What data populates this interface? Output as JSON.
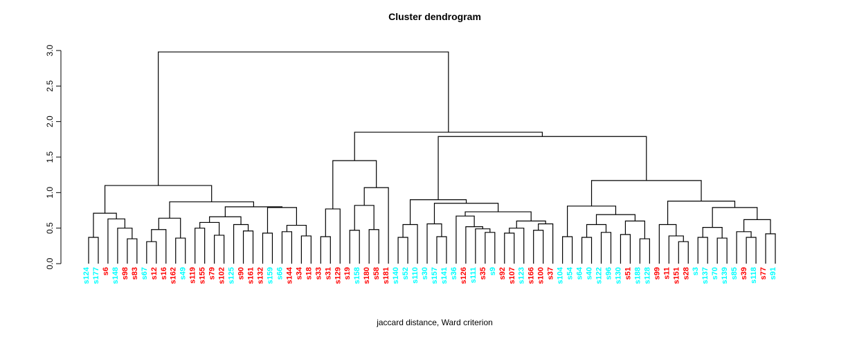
{
  "chart_data": {
    "type": "dendrogram",
    "title": "Cluster dendrogram",
    "xlabel": "jaccard distance, Ward criterion",
    "ylabel": "",
    "ylim": [
      0,
      3
    ],
    "y_tick_labels": [
      "0.0",
      "0.5",
      "1.0",
      "1.5",
      "2.0",
      "2.5",
      "3.0"
    ],
    "y_tick_values": [
      0,
      0.5,
      1,
      1.5,
      2,
      2.5,
      3
    ],
    "grid": false,
    "line_color": "#000000",
    "background_color": "#ffffff",
    "leaf_color_map": {
      "r": "#FF0000",
      "c": "#00FFFF"
    },
    "leaves": [
      {
        "label": "s124",
        "color": "c"
      },
      {
        "label": "s177",
        "color": "c"
      },
      {
        "label": "s6",
        "color": "r"
      },
      {
        "label": "s148",
        "color": "c"
      },
      {
        "label": "s98",
        "color": "r"
      },
      {
        "label": "s83",
        "color": "r"
      },
      {
        "label": "s67",
        "color": "c"
      },
      {
        "label": "s12",
        "color": "r"
      },
      {
        "label": "s16",
        "color": "r"
      },
      {
        "label": "s162",
        "color": "r"
      },
      {
        "label": "s49",
        "color": "c"
      },
      {
        "label": "s119",
        "color": "r"
      },
      {
        "label": "s155",
        "color": "r"
      },
      {
        "label": "s79",
        "color": "r"
      },
      {
        "label": "s102",
        "color": "r"
      },
      {
        "label": "s125",
        "color": "c"
      },
      {
        "label": "s90",
        "color": "r"
      },
      {
        "label": "s161",
        "color": "r"
      },
      {
        "label": "s132",
        "color": "r"
      },
      {
        "label": "s159",
        "color": "c"
      },
      {
        "label": "s66",
        "color": "c"
      },
      {
        "label": "s144",
        "color": "r"
      },
      {
        "label": "s34",
        "color": "r"
      },
      {
        "label": "s18",
        "color": "r"
      },
      {
        "label": "s33",
        "color": "r"
      },
      {
        "label": "s31",
        "color": "r"
      },
      {
        "label": "s129",
        "color": "r"
      },
      {
        "label": "s19",
        "color": "r"
      },
      {
        "label": "s158",
        "color": "c"
      },
      {
        "label": "s180",
        "color": "r"
      },
      {
        "label": "s58",
        "color": "r"
      },
      {
        "label": "s181",
        "color": "r"
      },
      {
        "label": "s140",
        "color": "c"
      },
      {
        "label": "s52",
        "color": "c"
      },
      {
        "label": "s110",
        "color": "c"
      },
      {
        "label": "s30",
        "color": "c"
      },
      {
        "label": "s157",
        "color": "c"
      },
      {
        "label": "s141",
        "color": "c"
      },
      {
        "label": "s36",
        "color": "c"
      },
      {
        "label": "s126",
        "color": "r"
      },
      {
        "label": "s111",
        "color": "c"
      },
      {
        "label": "s35",
        "color": "r"
      },
      {
        "label": "s9",
        "color": "c"
      },
      {
        "label": "s92",
        "color": "r"
      },
      {
        "label": "s107",
        "color": "r"
      },
      {
        "label": "s123",
        "color": "c"
      },
      {
        "label": "s166",
        "color": "r"
      },
      {
        "label": "s100",
        "color": "r"
      },
      {
        "label": "s37",
        "color": "r"
      },
      {
        "label": "s104",
        "color": "c"
      },
      {
        "label": "s54",
        "color": "c"
      },
      {
        "label": "s64",
        "color": "c"
      },
      {
        "label": "s40",
        "color": "c"
      },
      {
        "label": "s122",
        "color": "c"
      },
      {
        "label": "s96",
        "color": "c"
      },
      {
        "label": "s130",
        "color": "c"
      },
      {
        "label": "s51",
        "color": "r"
      },
      {
        "label": "s188",
        "color": "c"
      },
      {
        "label": "s128",
        "color": "c"
      },
      {
        "label": "s99",
        "color": "r"
      },
      {
        "label": "s11",
        "color": "r"
      },
      {
        "label": "s151",
        "color": "r"
      },
      {
        "label": "s28",
        "color": "r"
      },
      {
        "label": "s3",
        "color": "c"
      },
      {
        "label": "s137",
        "color": "c"
      },
      {
        "label": "s70",
        "color": "c"
      },
      {
        "label": "s139",
        "color": "c"
      },
      {
        "label": "s85",
        "color": "c"
      },
      {
        "label": "s39",
        "color": "r"
      },
      {
        "label": "s118",
        "color": "c"
      },
      {
        "label": "s77",
        "color": "r"
      },
      {
        "label": "s91",
        "color": "c"
      }
    ],
    "tree": [
      2.98,
      [
        1.1,
        [
          0.71,
          [
            0.37,
            0,
            1
          ],
          [
            0.63,
            2,
            [
              0.5,
              3,
              [
                0.35,
                4,
                5
              ]
            ]
          ]
        ],
        [
          0.87,
          [
            0.64,
            [
              0.48,
              [
                0.31,
                6,
                7
              ],
              8
            ],
            [
              0.36,
              9,
              10
            ]
          ],
          [
            0.8,
            [
              0.66,
              [
                0.58,
                [
                  0.5,
                  11,
                  12
                ],
                [
                  0.4,
                  13,
                  14
                ]
              ],
              [
                0.55,
                15,
                [
                  0.46,
                  16,
                  17
                ]
              ]
            ],
            [
              0.79,
              [
                0.43,
                18,
                19
              ],
              [
                0.54,
                [
                  0.45,
                  20,
                  21
                ],
                [
                  0.39,
                  22,
                  23
                ]
              ]
            ]
          ]
        ]
      ],
      [
        1.85,
        [
          1.45,
          [
            0.77,
            [
              0.38,
              24,
              25
            ],
            26
          ],
          [
            1.07,
            [
              0.82,
              [
                0.47,
                27,
                28
              ],
              [
                0.48,
                29,
                30
              ]
            ],
            31
          ]
        ],
        [
          1.79,
          [
            0.9,
            [
              0.55,
              [
                0.37,
                32,
                33
              ],
              34
            ],
            [
              0.85,
              [
                0.56,
                35,
                [
                  0.38,
                  36,
                  37
                ]
              ],
              [
                0.73,
                [
                  0.67,
                  38,
                  [
                    0.52,
                    39,
                    [
                      0.49,
                      40,
                      [
                        0.44,
                        41,
                        42
                      ]
                    ]
                  ]
                ],
                [
                  0.6,
                  [
                    0.5,
                    [
                      0.43,
                      43,
                      44
                    ],
                    45
                  ],
                  [
                    0.56,
                    [
                      0.47,
                      46,
                      47
                    ],
                    48
                  ]
                ]
              ]
            ]
          ],
          [
            1.17,
            [
              0.81,
              [
                0.38,
                49,
                50
              ],
              [
                0.69,
                [
                  0.55,
                  [
                    0.37,
                    51,
                    52
                  ],
                  [
                    0.44,
                    53,
                    54
                  ]
                ],
                [
                  0.6,
                  [
                    0.41,
                    55,
                    56
                  ],
                  [
                    0.35,
                    57,
                    58
                  ]
                ]
              ]
            ],
            [
              0.88,
              [
                0.55,
                59,
                [
                  0.39,
                  60,
                  [
                    0.31,
                    61,
                    62
                  ]
                ]
              ],
              [
                0.79,
                [
                  0.51,
                  [
                    0.37,
                    63,
                    64
                  ],
                  [
                    0.36,
                    65,
                    66
                  ]
                ],
                [
                  0.62,
                  [
                    0.45,
                    67,
                    [
                      0.37,
                      68,
                      69
                    ]
                  ],
                  [
                    0.42,
                    70,
                    71
                  ]
                ]
              ]
            ]
          ]
        ]
      ]
    ]
  }
}
